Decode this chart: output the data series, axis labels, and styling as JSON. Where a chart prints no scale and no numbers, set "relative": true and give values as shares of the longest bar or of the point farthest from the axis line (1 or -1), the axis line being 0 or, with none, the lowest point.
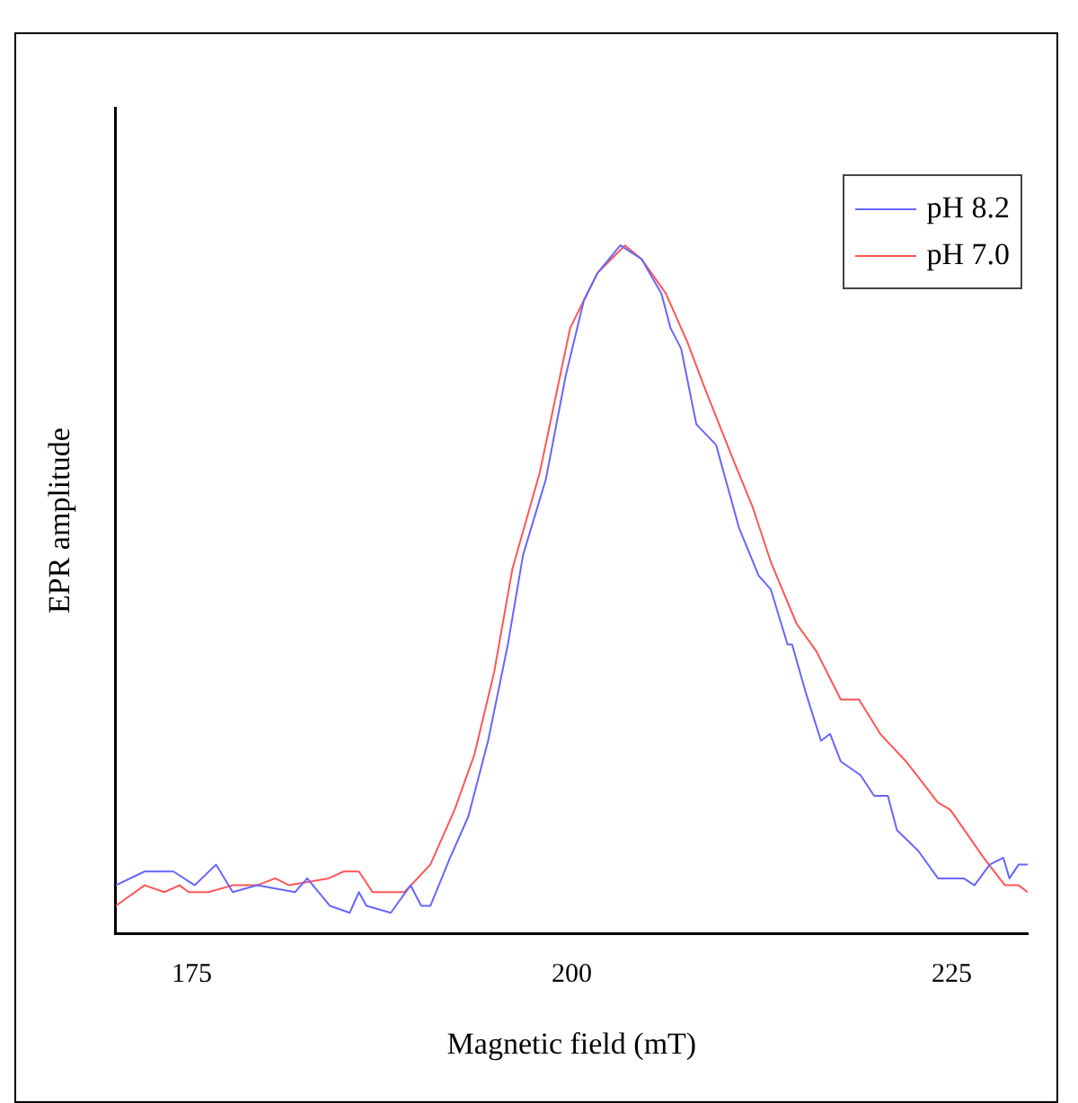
{
  "chart_data": {
    "type": "line",
    "xlabel": "Magnetic field (mT)",
    "ylabel": "EPR amplitude",
    "relative": true,
    "xlim": [
      170,
      230
    ],
    "xticks": [
      175,
      200,
      225
    ],
    "legend": "top right",
    "grid": false,
    "marker": "none",
    "line_style": "solid",
    "series": [
      {
        "name": "pH 8.2",
        "color": "#6666ff",
        "x": [
          170.0,
          171.9,
          173.8,
          175.2,
          176.6,
          177.7,
          179.3,
          181.8,
          182.6,
          184.1,
          185.4,
          186.0,
          186.5,
          188.1,
          189.4,
          190.1,
          190.7,
          192.0,
          193.2,
          194.5,
          195.8,
          196.8,
          198.3,
          199.6,
          200.8,
          201.7,
          203.2,
          204.6,
          205.9,
          206.5,
          207.2,
          208.2,
          209.5,
          211.0,
          212.3,
          213.1,
          214.2,
          214.5,
          215.4,
          216.4,
          217.0,
          217.7,
          219.0,
          219.9,
          220.8,
          221.4,
          222.8,
          224.1,
          225.8,
          226.5,
          227.5,
          228.4,
          228.8,
          229.4,
          230.0
        ],
        "values": [
          0.07,
          0.09,
          0.09,
          0.07,
          0.1,
          0.06,
          0.07,
          0.06,
          0.08,
          0.04,
          0.03,
          0.06,
          0.04,
          0.03,
          0.07,
          0.04,
          0.04,
          0.11,
          0.17,
          0.28,
          0.42,
          0.55,
          0.66,
          0.81,
          0.92,
          0.96,
          1.0,
          0.98,
          0.93,
          0.88,
          0.85,
          0.74,
          0.71,
          0.59,
          0.52,
          0.5,
          0.42,
          0.42,
          0.35,
          0.28,
          0.29,
          0.25,
          0.23,
          0.2,
          0.2,
          0.15,
          0.12,
          0.08,
          0.08,
          0.07,
          0.1,
          0.11,
          0.08,
          0.1,
          0.1
        ]
      },
      {
        "name": "pH 7.0",
        "color": "#ff5555",
        "x": [
          170.0,
          171.9,
          173.2,
          174.2,
          174.8,
          176.1,
          177.7,
          179.3,
          180.5,
          181.4,
          184.0,
          185.0,
          186.0,
          186.9,
          189.0,
          190.7,
          192.3,
          193.6,
          194.9,
          196.1,
          197.9,
          199.9,
          200.8,
          201.7,
          203.5,
          204.6,
          206.2,
          207.6,
          208.8,
          210.6,
          211.9,
          213.1,
          214.8,
          216.1,
          217.7,
          218.9,
          220.3,
          222.0,
          224.1,
          224.9,
          227.1,
          228.5,
          229.4,
          230.0
        ],
        "values": [
          0.04,
          0.07,
          0.06,
          0.07,
          0.06,
          0.06,
          0.07,
          0.07,
          0.08,
          0.07,
          0.08,
          0.09,
          0.09,
          0.06,
          0.06,
          0.1,
          0.18,
          0.26,
          0.38,
          0.53,
          0.67,
          0.88,
          0.92,
          0.96,
          1.0,
          0.98,
          0.93,
          0.86,
          0.79,
          0.69,
          0.62,
          0.54,
          0.45,
          0.41,
          0.34,
          0.34,
          0.29,
          0.25,
          0.19,
          0.18,
          0.11,
          0.07,
          0.07,
          0.06
        ]
      }
    ]
  }
}
